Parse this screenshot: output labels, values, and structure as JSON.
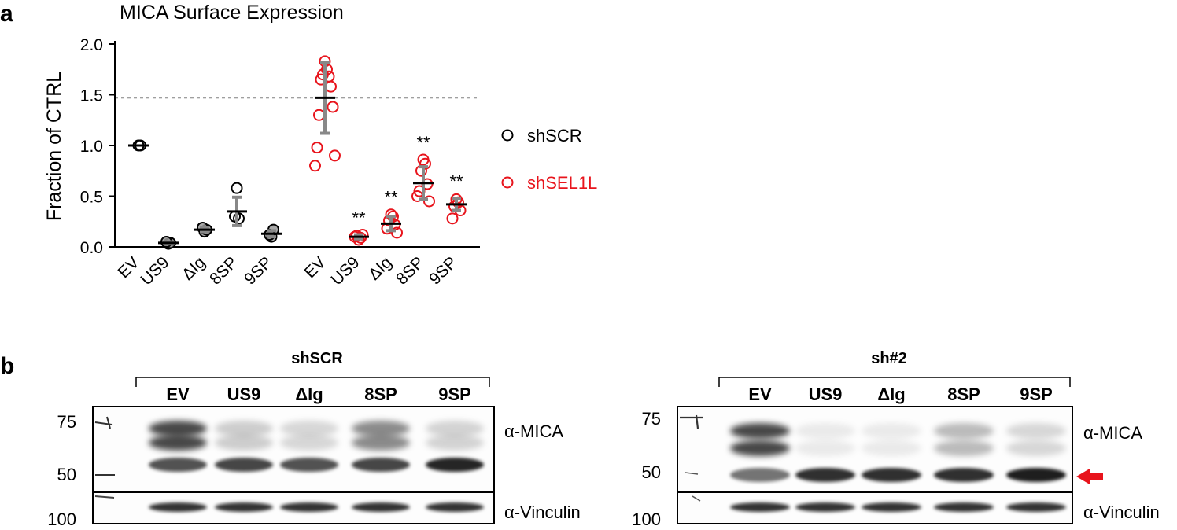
{
  "panel_a": {
    "label": "a",
    "chart_data": {
      "type": "scatter",
      "title": "MICA Surface Expression",
      "ylabel": "Fraction of CTRL",
      "xlabel": "",
      "ylim": [
        0,
        2.0
      ],
      "yticks": [
        "0.0",
        "0.5",
        "1.0",
        "1.5",
        "2.0"
      ],
      "ytick_values": [
        0,
        0.5,
        1.0,
        1.5,
        2.0
      ],
      "reference_line": {
        "y": 1.47,
        "style": "dotted"
      },
      "legend": [
        {
          "name": "shSCR",
          "color": "#000000"
        },
        {
          "name": "shSEL1L",
          "color": "#e8141c"
        }
      ],
      "groups": [
        {
          "category": "EV",
          "series": "shSCR",
          "color": "#000000",
          "mean": 1.0,
          "err": 0.0,
          "sig": "",
          "points": [
            1.0,
            1.0
          ]
        },
        {
          "category": "US9",
          "series": "shSCR",
          "color": "#000000",
          "mean": 0.04,
          "err": 0.01,
          "sig": "",
          "points": [
            0.03,
            0.04,
            0.05
          ],
          "filled": true
        },
        {
          "category": "ΔIg",
          "series": "shSCR",
          "color": "#000000",
          "mean": 0.17,
          "err": 0.02,
          "sig": "",
          "points": [
            0.15,
            0.17,
            0.19
          ],
          "filled": true
        },
        {
          "category": "8SP",
          "series": "shSCR",
          "color": "#000000",
          "mean": 0.35,
          "err": 0.14,
          "sig": "",
          "points": [
            0.58,
            0.28,
            0.3
          ]
        },
        {
          "category": "9SP",
          "series": "shSCR",
          "color": "#000000",
          "mean": 0.13,
          "err": 0.03,
          "sig": "",
          "points": [
            0.1,
            0.17,
            0.12
          ],
          "filled": true
        },
        {
          "category": "EV",
          "series": "shSEL1L",
          "color": "#e8141c",
          "mean": 1.47,
          "err": 0.35,
          "sig": "",
          "points": [
            1.83,
            1.75,
            1.7,
            1.68,
            1.65,
            1.58,
            1.3,
            1.38,
            0.98,
            0.9,
            0.8
          ]
        },
        {
          "category": "US9",
          "series": "shSEL1L",
          "color": "#e8141c",
          "mean": 0.1,
          "err": 0.02,
          "sig": "**",
          "points": [
            0.07,
            0.09,
            0.11,
            0.12,
            0.1
          ]
        },
        {
          "category": "ΔIg",
          "series": "shSEL1L",
          "color": "#e8141c",
          "mean": 0.23,
          "err": 0.07,
          "sig": "**",
          "points": [
            0.32,
            0.3,
            0.26,
            0.22,
            0.18,
            0.14
          ]
        },
        {
          "category": "8SP",
          "series": "shSEL1L",
          "color": "#e8141c",
          "mean": 0.63,
          "err": 0.16,
          "sig": "**",
          "points": [
            0.86,
            0.82,
            0.75,
            0.62,
            0.55,
            0.45,
            0.5
          ]
        },
        {
          "category": "9SP",
          "series": "shSEL1L",
          "color": "#e8141c",
          "mean": 0.42,
          "err": 0.06,
          "sig": "**",
          "points": [
            0.47,
            0.44,
            0.4,
            0.36,
            0.28
          ]
        }
      ]
    }
  },
  "panel_b": {
    "label": "b",
    "blots": [
      {
        "name": "left",
        "group_label": "shSCR",
        "lanes": [
          "EV",
          "US9",
          "ΔIg",
          "8SP",
          "9SP"
        ],
        "mw_markers": [
          "75",
          "50",
          "100"
        ],
        "antibodies": [
          "α-MICA",
          "α-Vinculin"
        ],
        "upper_band_intensity": [
          0.95,
          0.25,
          0.2,
          0.6,
          0.22
        ],
        "lower_band_intensity": [
          0.75,
          0.8,
          0.75,
          0.8,
          0.95
        ],
        "arrow": false
      },
      {
        "name": "right",
        "group_label": "sh#2",
        "lanes": [
          "EV",
          "US9",
          "ΔIg",
          "8SP",
          "9SP"
        ],
        "mw_markers": [
          "75",
          "50",
          "100"
        ],
        "antibodies": [
          "α-MICA",
          "α-Vinculin"
        ],
        "upper_band_intensity": [
          0.95,
          0.1,
          0.1,
          0.35,
          0.2
        ],
        "lower_band_intensity": [
          0.6,
          0.9,
          0.9,
          0.9,
          0.98
        ],
        "arrow": true
      }
    ],
    "arrow_color": "#e8141c"
  }
}
